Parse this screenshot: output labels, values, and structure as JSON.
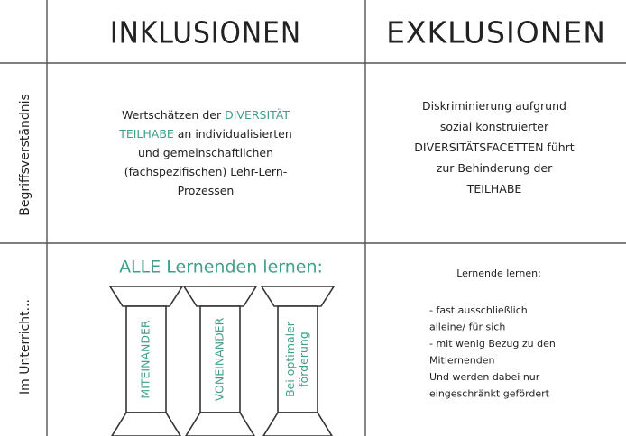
{
  "header": {
    "columns": [
      "INKLUSIONEN",
      "EXKLUSIONEN"
    ]
  },
  "rows": [
    {
      "label": "Begriffsverständnis",
      "inklusion": {
        "lines": [
          [
            "Wertschätzen der ",
            {
              "text": "DIVERSITÄT",
              "color": "#3f9f8a"
            }
          ],
          [
            {
              "text": "TEILHABE",
              "color": "#3f9f8a"
            },
            " an individualisierten"
          ],
          [
            "und gemeinschaftlichen"
          ],
          [
            "(fachspezifischen) Lehr-Lern-"
          ],
          [
            "Prozessen"
          ]
        ]
      },
      "exklusion": {
        "lines": [
          [
            "Diskriminierung aufgrund"
          ],
          [
            "sozial konstruierter"
          ],
          [
            "DIVERSITÄTSFACETTEN führt"
          ],
          [
            "zur Behinderung der"
          ],
          [
            "TEILHABE"
          ]
        ]
      }
    },
    {
      "label": "Im Unterricht...",
      "inklusion": {
        "title": "ALLE Lernenden lernen:",
        "pillars": [
          [
            "MITEINANDER"
          ],
          [
            "VONEINANDER"
          ],
          [
            "Bei optimaler",
            "förderung"
          ]
        ]
      },
      "exklusion": {
        "title": "Lernende lernen:",
        "lines": [
          [
            "- fast ausschließlich"
          ],
          [
            "alleine/ für sich"
          ],
          [
            "- mit wenig Bezug zu den"
          ],
          [
            "Mitlernenden"
          ],
          [
            "Und werden dabei nur"
          ],
          [
            "eingeschränkt gefördert"
          ]
        ]
      }
    }
  ]
}
